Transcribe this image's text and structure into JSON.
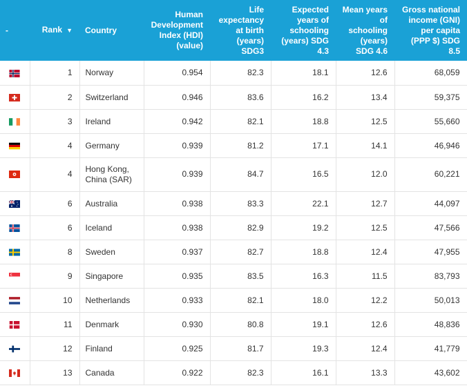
{
  "header": {
    "flag": "-",
    "rank": "Rank",
    "sort_icon": "▼",
    "country": "Country",
    "hdi": "Human Development Index (HDI) (value)",
    "life": "Life expectancy at birth (years) SDG3",
    "expected": "Expected years of schooling (years) SDG 4.3",
    "mean": "Mean years of schooling (years) SDG 4.6",
    "gni": "Gross national income (GNI) per capita (PPP $) SDG 8.5"
  },
  "rows": [
    {
      "flag": "norway-flag-icon",
      "rank": "1",
      "country": "Norway",
      "hdi": "0.954",
      "life": "82.3",
      "expected": "18.1",
      "mean": "12.6",
      "gni": "68,059"
    },
    {
      "flag": "switzerland-flag-icon",
      "rank": "2",
      "country": "Switzerland",
      "hdi": "0.946",
      "life": "83.6",
      "expected": "16.2",
      "mean": "13.4",
      "gni": "59,375"
    },
    {
      "flag": "ireland-flag-icon",
      "rank": "3",
      "country": "Ireland",
      "hdi": "0.942",
      "life": "82.1",
      "expected": "18.8",
      "mean": "12.5",
      "gni": "55,660"
    },
    {
      "flag": "germany-flag-icon",
      "rank": "4",
      "country": "Germany",
      "hdi": "0.939",
      "life": "81.2",
      "expected": "17.1",
      "mean": "14.1",
      "gni": "46,946"
    },
    {
      "flag": "hong-kong-flag-icon",
      "rank": "4",
      "country": "Hong Kong, China (SAR)",
      "hdi": "0.939",
      "life": "84.7",
      "expected": "16.5",
      "mean": "12.0",
      "gni": "60,221"
    },
    {
      "flag": "australia-flag-icon",
      "rank": "6",
      "country": "Australia",
      "hdi": "0.938",
      "life": "83.3",
      "expected": "22.1",
      "mean": "12.7",
      "gni": "44,097"
    },
    {
      "flag": "iceland-flag-icon",
      "rank": "6",
      "country": "Iceland",
      "hdi": "0.938",
      "life": "82.9",
      "expected": "19.2",
      "mean": "12.5",
      "gni": "47,566"
    },
    {
      "flag": "sweden-flag-icon",
      "rank": "8",
      "country": "Sweden",
      "hdi": "0.937",
      "life": "82.7",
      "expected": "18.8",
      "mean": "12.4",
      "gni": "47,955"
    },
    {
      "flag": "singapore-flag-icon",
      "rank": "9",
      "country": "Singapore",
      "hdi": "0.935",
      "life": "83.5",
      "expected": "16.3",
      "mean": "11.5",
      "gni": "83,793"
    },
    {
      "flag": "netherlands-flag-icon",
      "rank": "10",
      "country": "Netherlands",
      "hdi": "0.933",
      "life": "82.1",
      "expected": "18.0",
      "mean": "12.2",
      "gni": "50,013"
    },
    {
      "flag": "denmark-flag-icon",
      "rank": "11",
      "country": "Denmark",
      "hdi": "0.930",
      "life": "80.8",
      "expected": "19.1",
      "mean": "12.6",
      "gni": "48,836"
    },
    {
      "flag": "finland-flag-icon",
      "rank": "12",
      "country": "Finland",
      "hdi": "0.925",
      "life": "81.7",
      "expected": "19.3",
      "mean": "12.4",
      "gni": "41,779"
    },
    {
      "flag": "canada-flag-icon",
      "rank": "13",
      "country": "Canada",
      "hdi": "0.922",
      "life": "82.3",
      "expected": "16.1",
      "mean": "13.3",
      "gni": "43,602"
    }
  ]
}
